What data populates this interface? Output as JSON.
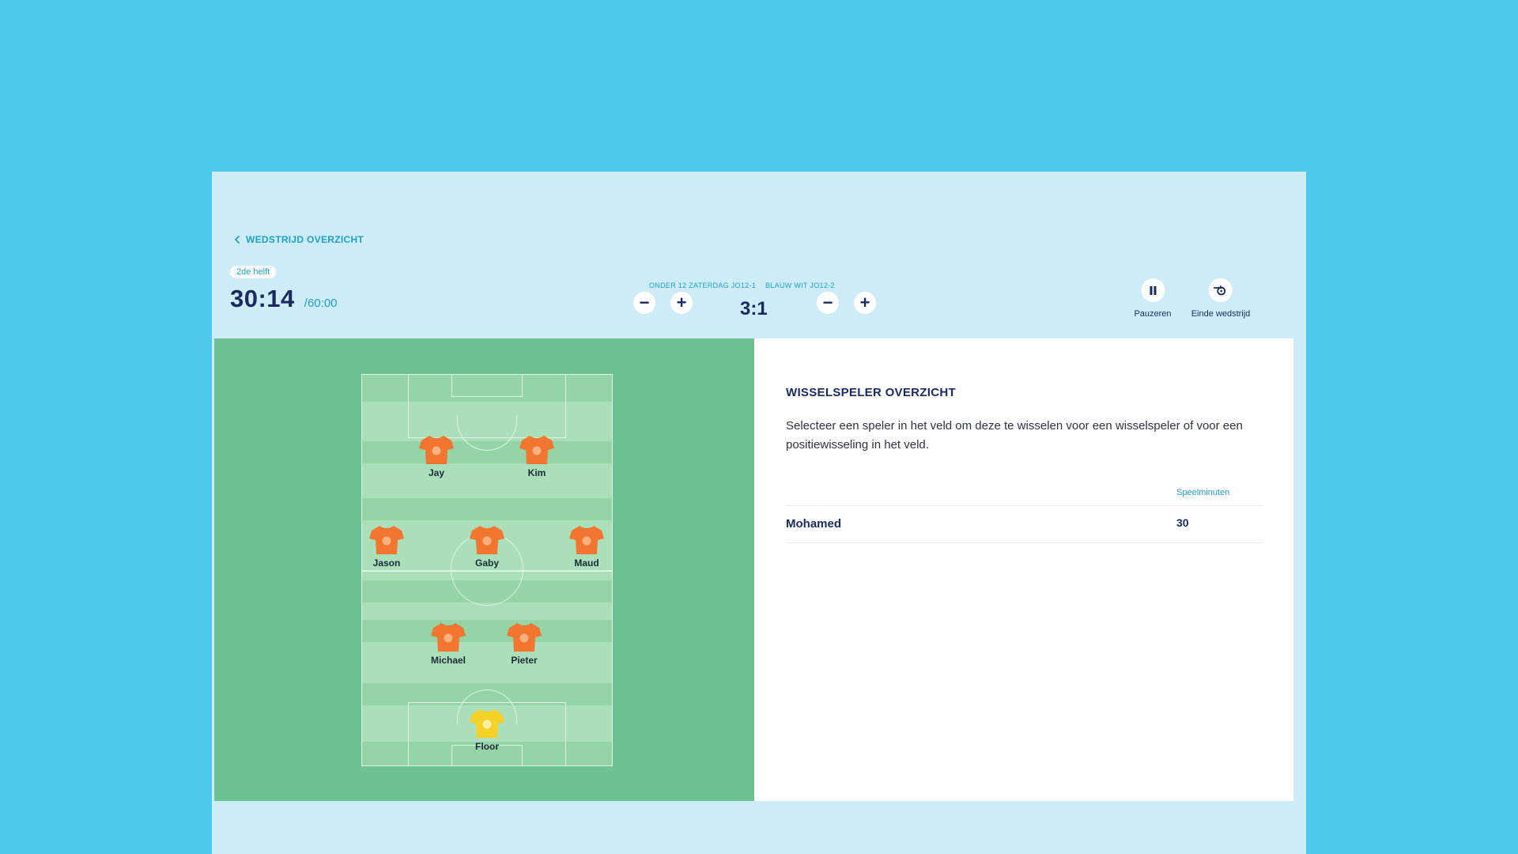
{
  "header": {
    "back_label": "WEDSTRIJD OVERZICHT",
    "period": "2de helft",
    "time": "30:14",
    "total_time": "/60:00"
  },
  "match": {
    "home_team": "ONDER 12 ZATERDAG JO12-1",
    "away_team": "BLAUW WIT JO12-2",
    "score": "3:1",
    "decrement_symbol": "−",
    "increment_symbol": "+"
  },
  "controls": {
    "pause_label": "Pauzeren",
    "end_label": "Einde wedstrijd"
  },
  "field": {
    "players": [
      {
        "name": "Jay",
        "color": "orange"
      },
      {
        "name": "Kim",
        "color": "orange"
      },
      {
        "name": "Jason",
        "color": "orange"
      },
      {
        "name": "Gaby",
        "color": "orange"
      },
      {
        "name": "Maud",
        "color": "orange"
      },
      {
        "name": "Michael",
        "color": "orange"
      },
      {
        "name": "Pieter",
        "color": "orange"
      },
      {
        "name": "Floor",
        "color": "yellow"
      }
    ]
  },
  "substitutes": {
    "title": "WISSELSPELER OVERZICHT",
    "description": "Selecteer een speler in het veld om deze te wisselen voor een wisselspeler of voor een positiewisseling in het veld.",
    "minutes_header": "Speelminuten",
    "rows": [
      {
        "name": "Mohamed",
        "minutes": "30"
      }
    ]
  },
  "colors": {
    "background": "#4ec8ec",
    "app": "#cdecf7",
    "accent": "#1e9fc6",
    "navy": "#1b2a5e",
    "field": "#6cc290",
    "shirt_orange": "#f27630",
    "shirt_yellow": "#f5d12a"
  }
}
